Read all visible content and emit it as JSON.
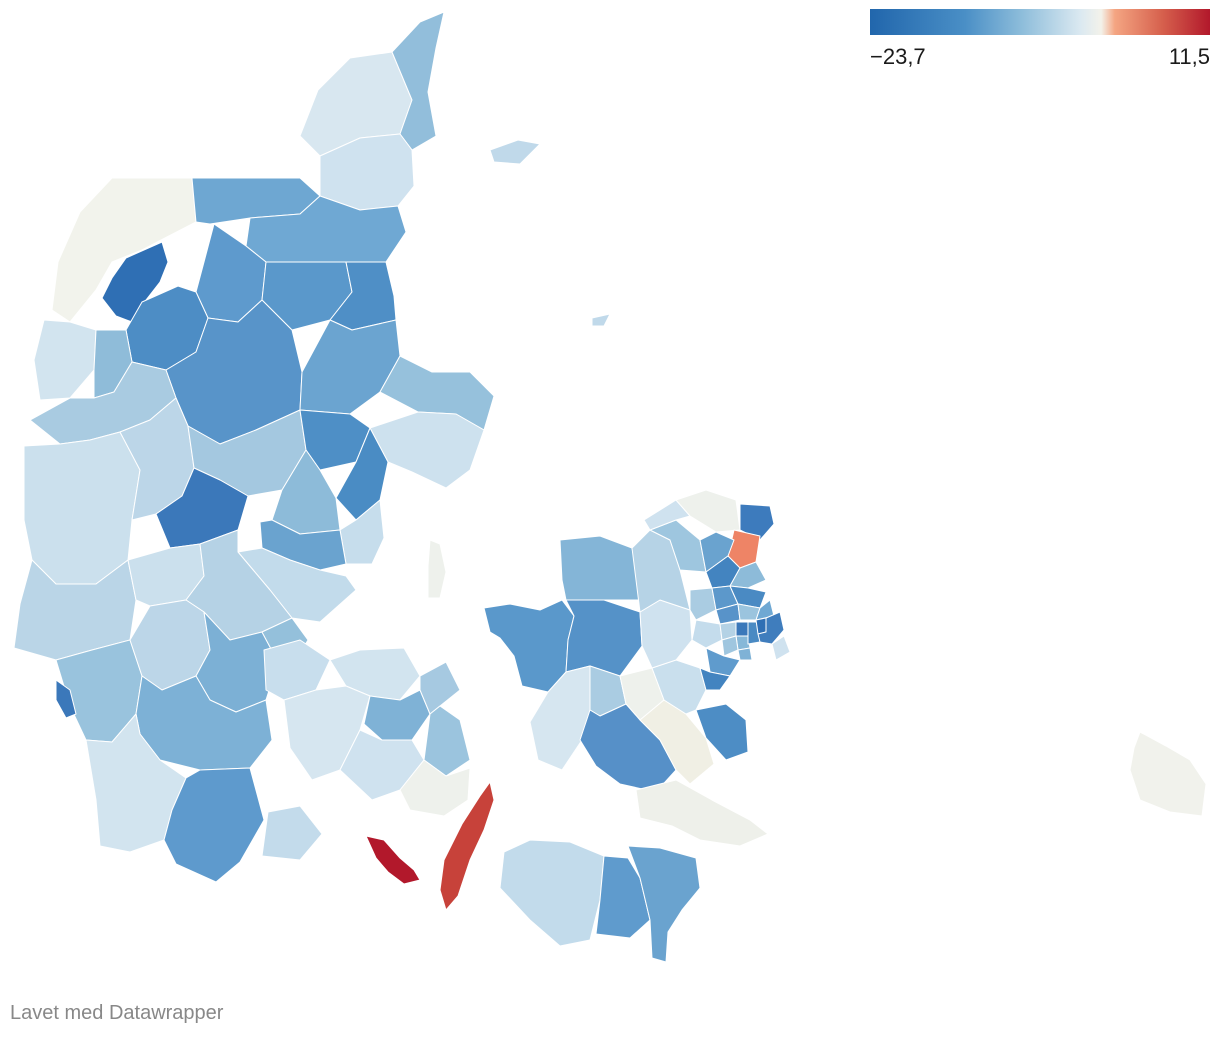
{
  "legend": {
    "min_label": "−23,7",
    "max_label": "11,5",
    "min_value": -23.7,
    "max_value": 11.5,
    "colors": [
      "#2166ac",
      "#4a8fc6",
      "#8fbedb",
      "#dbe9f1",
      "#f3f2ea",
      "#f4a582",
      "#d6604d",
      "#b2182b"
    ]
  },
  "footer": {
    "credit": "Lavet med Datawrapper"
  },
  "map": {
    "regions": [
      {
        "name": "thisted",
        "color": "#f2f3ec"
      },
      {
        "name": "morsoe",
        "color": "#2f6fb4"
      },
      {
        "name": "vesthimmerland",
        "color": "#6ea7d2"
      },
      {
        "name": "jammerbugt",
        "color": "#d8e7f0"
      },
      {
        "name": "hjoerring",
        "color": "#92bedb"
      },
      {
        "name": "frederikshavn",
        "color": "#cfe2ef"
      },
      {
        "name": "broenderslev",
        "color": "#6fa8d3"
      },
      {
        "name": "aalborg",
        "color": "#5e9acd"
      },
      {
        "name": "mariagerfjord",
        "color": "#5a98cb"
      },
      {
        "name": "rebild",
        "color": "#4f8fc6"
      },
      {
        "name": "randers",
        "color": "#4d8dc5"
      },
      {
        "name": "norddjurs",
        "color": "#d2e4ef"
      },
      {
        "name": "syddjurs",
        "color": "#8fbcd9"
      },
      {
        "name": "viborg",
        "color": "#5894c9"
      },
      {
        "name": "skive",
        "color": "#6ba4d0"
      },
      {
        "name": "lemvig",
        "color": "#96c1dc"
      },
      {
        "name": "struer",
        "color": "#cde1ee"
      },
      {
        "name": "holstebro",
        "color": "#a9cbe1"
      },
      {
        "name": "ringkoebing-skjern",
        "color": "#cbe0ed"
      },
      {
        "name": "herning",
        "color": "#bcd6e8"
      },
      {
        "name": "silkeborg",
        "color": "#a4c8e0"
      },
      {
        "name": "favrskov",
        "color": "#4e8fc6"
      },
      {
        "name": "aarhus",
        "color": "#4a8cc4"
      },
      {
        "name": "skanderborg",
        "color": "#8dbbd9"
      },
      {
        "name": "odder",
        "color": "#c6ddec"
      },
      {
        "name": "horsens",
        "color": "#6aa3cf"
      },
      {
        "name": "hedensted",
        "color": "#3b78ba"
      },
      {
        "name": "ikast-brande",
        "color": "#c2dbeb"
      },
      {
        "name": "billund",
        "color": "#bad5e7"
      },
      {
        "name": "varde",
        "color": "#cbe0ed"
      },
      {
        "name": "esbjerg",
        "color": "#b5d2e5"
      },
      {
        "name": "vejle",
        "color": "#99c3dd"
      },
      {
        "name": "fredericia",
        "color": "#bcd6e8"
      },
      {
        "name": "kolding",
        "color": "#7cb0d5"
      },
      {
        "name": "vejen",
        "color": "#94c0db"
      },
      {
        "name": "haderslev",
        "color": "#7db1d6"
      },
      {
        "name": "toender",
        "color": "#d2e4ef"
      },
      {
        "name": "aabenraa",
        "color": "#5e9acd"
      },
      {
        "name": "soenderborg",
        "color": "#c3dbeb"
      },
      {
        "name": "middelfart",
        "color": "#c8deed"
      },
      {
        "name": "assens",
        "color": "#d6e6f0"
      },
      {
        "name": "nordfyn",
        "color": "#d2e4ef"
      },
      {
        "name": "odense",
        "color": "#7fb2d6"
      },
      {
        "name": "kerteminde",
        "color": "#a6c9e1"
      },
      {
        "name": "nyborg",
        "color": "#9bc4de"
      },
      {
        "name": "faaborg-midtfyn",
        "color": "#cfe2ef"
      },
      {
        "name": "svendborg",
        "color": "#eef1ec"
      },
      {
        "name": "aeroe",
        "color": "#b2182b"
      },
      {
        "name": "langeland",
        "color": "#c7423a"
      },
      {
        "name": "samsoe",
        "color": "#eef1ec"
      },
      {
        "name": "odsherred",
        "color": "#5a98cb"
      },
      {
        "name": "kalundborg",
        "color": "#5592c8"
      },
      {
        "name": "holbaek",
        "color": "#84b5d7"
      },
      {
        "name": "slagelse",
        "color": "#d6e6f0"
      },
      {
        "name": "soroe",
        "color": "#aacce2"
      },
      {
        "name": "ringsted",
        "color": "#eef1ec"
      },
      {
        "name": "naestved",
        "color": "#5690c8"
      },
      {
        "name": "faxe",
        "color": "#f0efe4"
      },
      {
        "name": "stevns",
        "color": "#4d8dc5"
      },
      {
        "name": "koege",
        "color": "#c9dfed"
      },
      {
        "name": "roskilde",
        "color": "#cfe2ef"
      },
      {
        "name": "lejre",
        "color": "#b6d3e6"
      },
      {
        "name": "frederikssund",
        "color": "#9ec6df"
      },
      {
        "name": "halsnaes",
        "color": "#cfe2ef"
      },
      {
        "name": "gribskov",
        "color": "#eef1ec"
      },
      {
        "name": "helsingoer",
        "color": "#3d7bbd"
      },
      {
        "name": "fredensborg",
        "color": "#ee8466"
      },
      {
        "name": "hilleroed",
        "color": "#6aa3cf"
      },
      {
        "name": "allerod",
        "color": "#4384c0"
      },
      {
        "name": "hoersholm",
        "color": "#8dbbd9"
      },
      {
        "name": "furesoe",
        "color": "#5c98cb"
      },
      {
        "name": "egedal",
        "color": "#aacce2"
      },
      {
        "name": "ballerup",
        "color": "#5893c9"
      },
      {
        "name": "gladsaxe",
        "color": "#4a8ac3"
      },
      {
        "name": "lyngby",
        "color": "#9bc4de"
      },
      {
        "name": "gentofte",
        "color": "#6fa8d3"
      },
      {
        "name": "koebenhavn",
        "color": "#3f7dbd"
      },
      {
        "name": "frederiksberg",
        "color": "#2f6fb4"
      },
      {
        "name": "taarnby",
        "color": "#cfe2ef"
      },
      {
        "name": "hvidovre",
        "color": "#4a8ac3"
      },
      {
        "name": "broendby",
        "color": "#87b8d8"
      },
      {
        "name": "glostrup",
        "color": "#3b78ba"
      },
      {
        "name": "albertslund",
        "color": "#b4d2e5"
      },
      {
        "name": "hoeje-taastrup",
        "color": "#c4dcec"
      },
      {
        "name": "ishoej",
        "color": "#9fc6df"
      },
      {
        "name": "vallensbaek",
        "color": "#7fb2d6"
      },
      {
        "name": "greve",
        "color": "#5f9bcd"
      },
      {
        "name": "solroed",
        "color": "#4384c0"
      },
      {
        "name": "vordingborg",
        "color": "#eef0ea"
      },
      {
        "name": "lolland",
        "color": "#c2dbeb"
      },
      {
        "name": "guldborgsund-west",
        "color": "#5f9bcd"
      },
      {
        "name": "guldborgsund-east",
        "color": "#6aa3cf"
      },
      {
        "name": "fanoe",
        "color": "#3b78ba"
      },
      {
        "name": "laesoe",
        "color": "#c0d9ea"
      },
      {
        "name": "anholt",
        "color": "#c0d9ea"
      },
      {
        "name": "bornholm",
        "color": "#f1f2ec"
      }
    ]
  }
}
